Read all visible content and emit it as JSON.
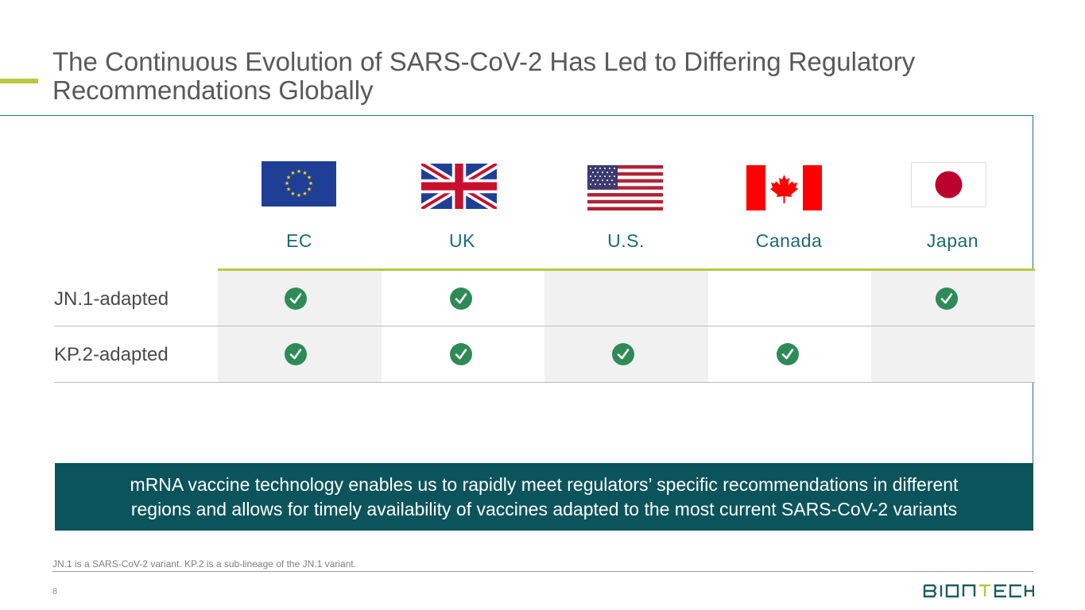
{
  "slide": {
    "title_line1": "The Continuous Evolution of SARS-CoV-2 Has Led to Differing Regulatory",
    "title_line2": "Recommendations Globally",
    "page_number": "8",
    "footnote": "JN.1 is a SARS-CoV-2 variant. KP.2 is a sub-lineage of the JN.1 variant.",
    "logo_text": "BIONTECH"
  },
  "table": {
    "columns": [
      {
        "label": "EC",
        "flag_icon": "eu-flag-icon"
      },
      {
        "label": "UK",
        "flag_icon": "uk-flag-icon"
      },
      {
        "label": "U.S.",
        "flag_icon": "us-flag-icon"
      },
      {
        "label": "Canada",
        "flag_icon": "canada-flag-icon"
      },
      {
        "label": "Japan",
        "flag_icon": "japan-flag-icon"
      }
    ],
    "rows": [
      {
        "label": "JN.1-adapted",
        "recommended": [
          true,
          true,
          false,
          false,
          true
        ]
      },
      {
        "label": "KP.2-adapted",
        "recommended": [
          true,
          true,
          true,
          true,
          false
        ]
      }
    ]
  },
  "banner": {
    "line1": "mRNA vaccine technology enables us to rapidly meet regulators’ specific recommendations in different",
    "line2": "regions and allows for timely availability of vaccines adapted to the most current SARS-CoV-2 variants"
  },
  "colors": {
    "accent": "#b9c93b",
    "teal": "#0c545c",
    "check": "#2e8b57"
  }
}
